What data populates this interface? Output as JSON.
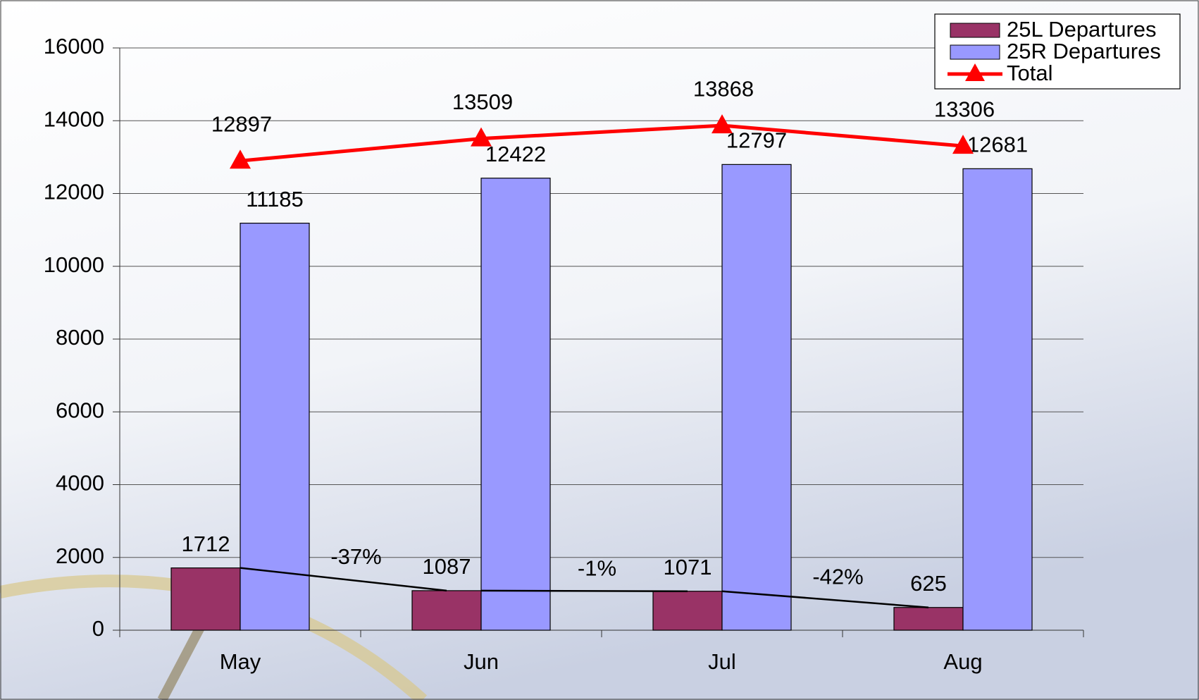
{
  "chart_data": {
    "type": "bar",
    "categories": [
      "May",
      "Jun",
      "Jul",
      "Aug"
    ],
    "series": [
      {
        "name": "25L Departures",
        "color": "#993366",
        "type": "bar",
        "values": [
          1712,
          1087,
          1071,
          625
        ]
      },
      {
        "name": "25R Departures",
        "color": "#9999ff",
        "type": "bar",
        "values": [
          11185,
          12422,
          12797,
          12681
        ]
      },
      {
        "name": "Total",
        "color": "#ff0000",
        "type": "line",
        "values": [
          12897,
          13509,
          13868,
          13306
        ]
      }
    ],
    "annotations": [
      "-37%",
      "-1%",
      "-42%"
    ],
    "ylim": [
      0,
      16000
    ],
    "yticks": [
      0,
      2000,
      4000,
      6000,
      8000,
      10000,
      12000,
      14000,
      16000
    ],
    "grid": true,
    "legend": "top-right"
  }
}
